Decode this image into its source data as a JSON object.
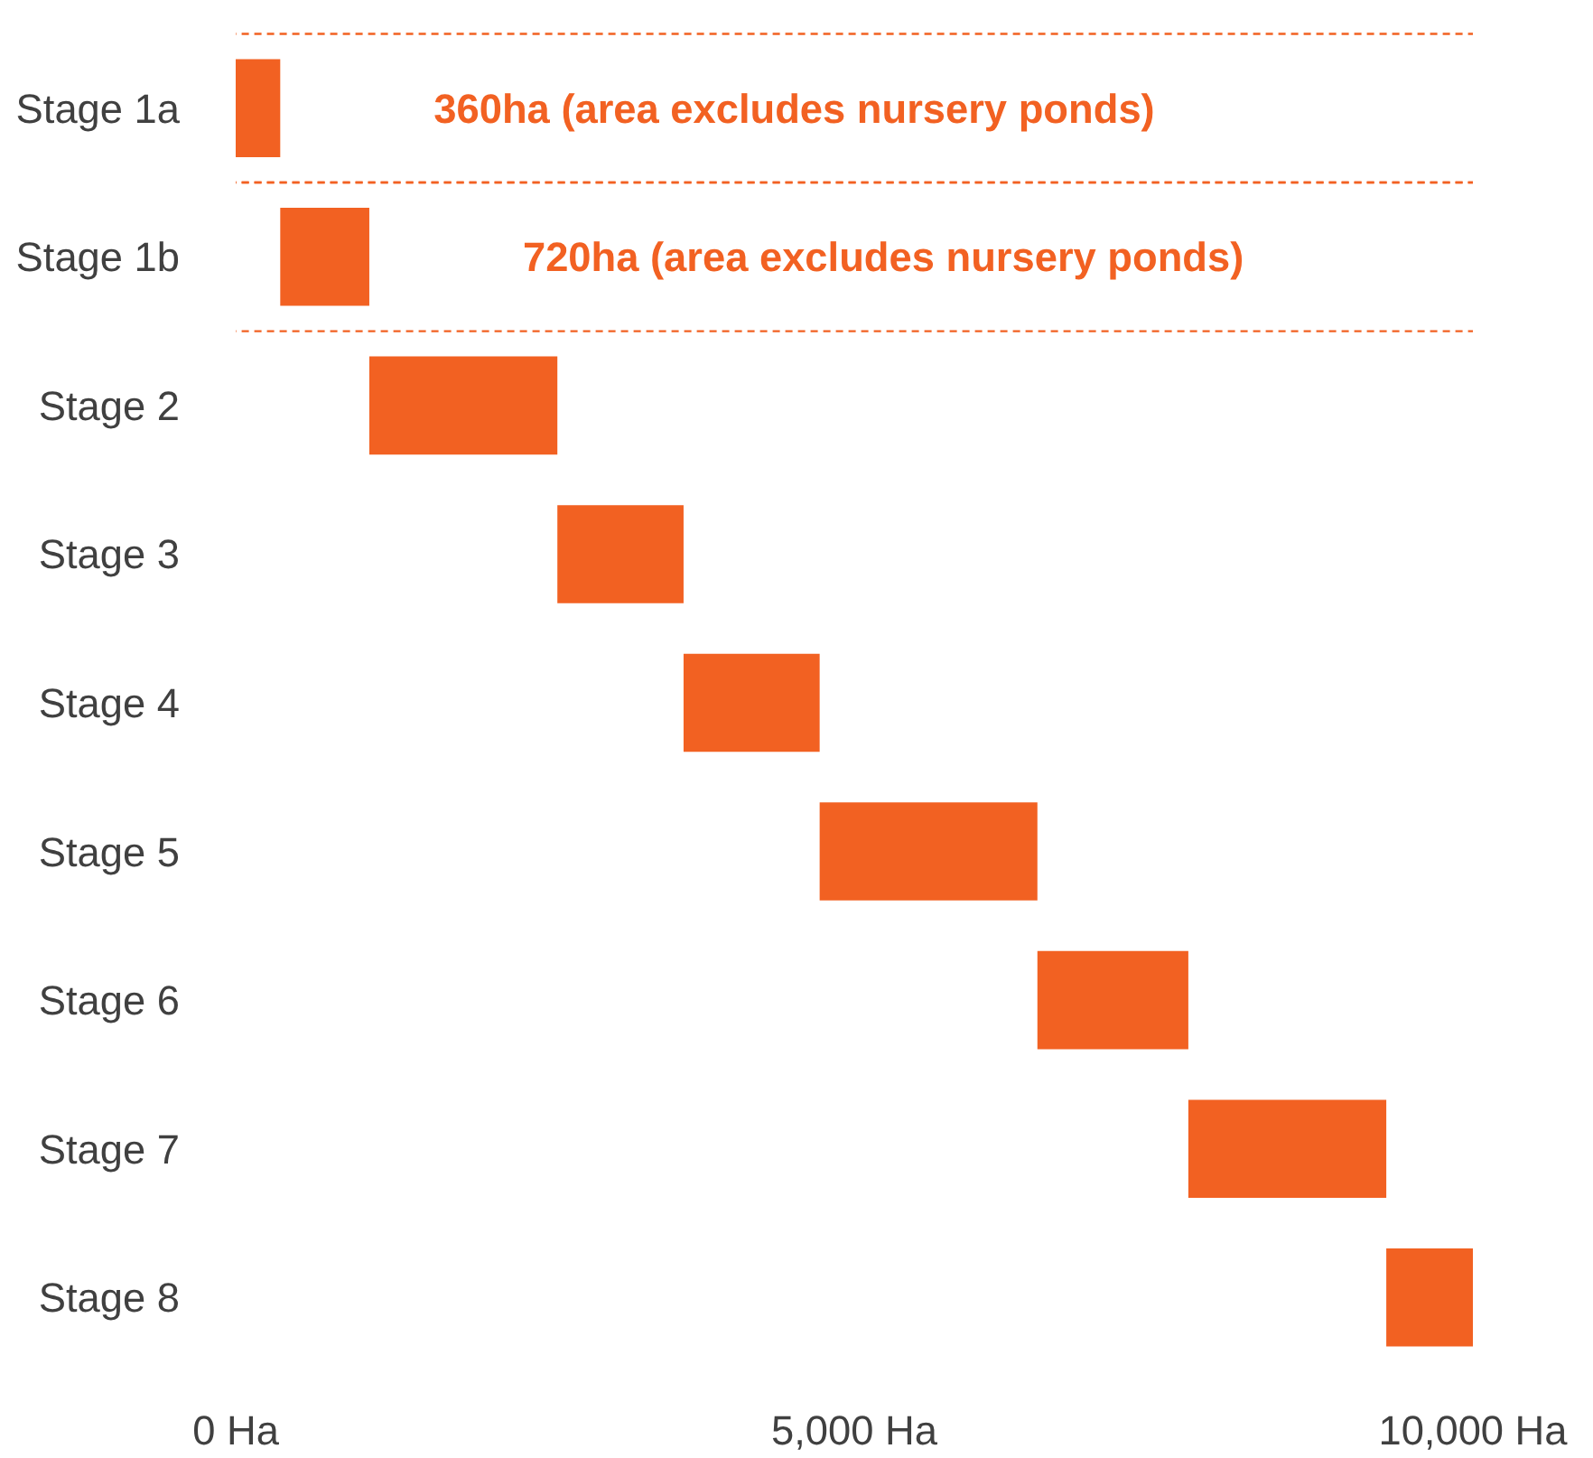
{
  "chart_data": {
    "type": "bar",
    "orientation": "horizontal",
    "categories": [
      "Stage 1a",
      "Stage 1b",
      "Stage 2",
      "Stage 3",
      "Stage 4",
      "Stage 5",
      "Stage 6",
      "Stage 7",
      "Stage 8"
    ],
    "base": [
      0,
      360,
      1080,
      2600,
      3620,
      4720,
      6480,
      7700,
      9300
    ],
    "values": [
      360,
      720,
      1520,
      1020,
      1100,
      1760,
      1220,
      1600,
      700
    ],
    "color": "#f26122",
    "xlim": [
      0,
      10000
    ],
    "xticks": [
      {
        "value": 0,
        "label": "0 Ha"
      },
      {
        "value": 5000,
        "label": "5,000 Ha"
      },
      {
        "value": 10000,
        "label": "10,000 Ha"
      }
    ],
    "annotations": [
      "360ha (area excludes nursery ponds)",
      "720ha (area excludes nursery ponds)"
    ],
    "grid": false
  }
}
